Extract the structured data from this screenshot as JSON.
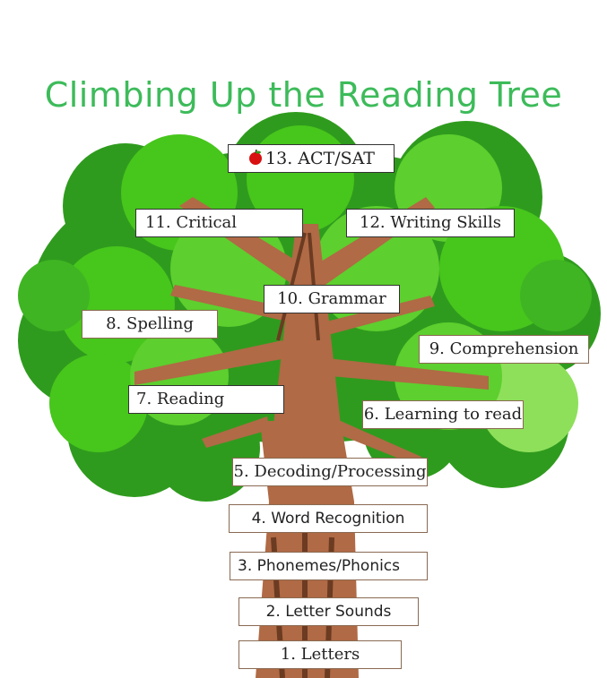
{
  "title": "Climbing Up the Reading Tree",
  "colors": {
    "title": "#3dbb5a",
    "leaf_dark": "#2f9b1e",
    "leaf_mid": "#47c61c",
    "leaf_light": "#8ee05a",
    "trunk": "#b06a45",
    "trunk_dark": "#6b3b22",
    "apple": "#d81010"
  },
  "labels": {
    "l13": "13. ACT/SAT",
    "l12": "12. Writing Skills",
    "l11": "11. Critical",
    "l10": "10. Grammar",
    "l9": "9. Comprehension",
    "l8": "8. Spelling",
    "l7": "7. Reading",
    "l6": "6. Learning to read",
    "l5": "5. Decoding/Processing",
    "l4": "4. Word Recognition",
    "l3": "3.  Phonemes/Phonics",
    "l2": "2. Letter Sounds",
    "l1": "1. Letters"
  },
  "icons": {
    "apple": "apple-icon"
  }
}
